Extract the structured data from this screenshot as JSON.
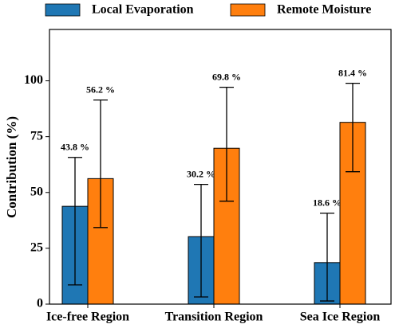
{
  "chart_data": {
    "type": "bar",
    "y_label": "Contribution (%)",
    "categories": [
      "Ice-free Region",
      "Transition Region",
      "Sea Ice Region"
    ],
    "series": [
      {
        "name": "Local Evaporation",
        "color": "#1f77b4",
        "values": [
          43.8,
          30.2,
          18.6
        ],
        "value_labels": [
          "43.8 %",
          "30.2 %",
          "18.6 %"
        ],
        "lower": [
          8.6,
          3.2,
          1.4
        ],
        "upper": [
          65.7,
          53.6,
          40.7
        ]
      },
      {
        "name": "Remote Moisture",
        "color": "#ff7f0e",
        "values": [
          56.2,
          69.8,
          81.4
        ],
        "value_labels": [
          "56.2 %",
          "69.8 %",
          "81.4 %"
        ],
        "lower": [
          34.3,
          46.1,
          59.3
        ],
        "upper": [
          91.4,
          97.1,
          98.9
        ]
      }
    ],
    "ylim": [
      0,
      123
    ],
    "yticks": [
      0,
      25,
      50,
      75,
      100
    ]
  }
}
